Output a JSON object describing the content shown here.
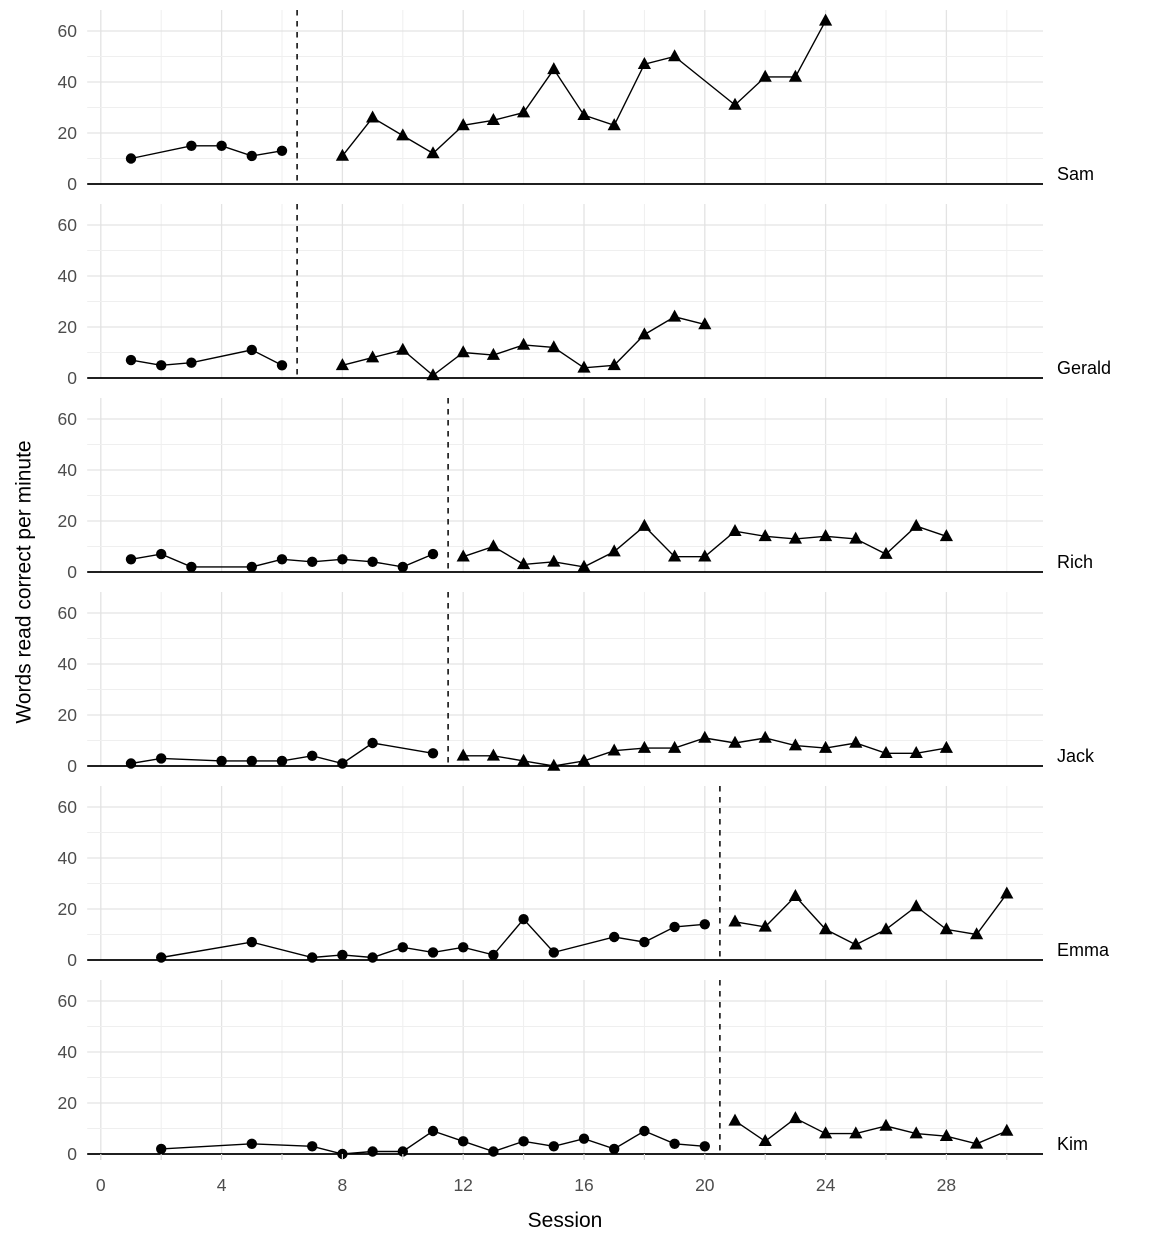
{
  "figure": {
    "x_axis_title": "Session",
    "y_axis_title": "Words read correct per minute",
    "x_ticks": [
      0,
      4,
      8,
      12,
      16,
      20,
      24,
      28
    ],
    "y_ticks": [
      0,
      20,
      40,
      60
    ],
    "colors": {
      "background": "#ffffff",
      "data": "#000000",
      "grid_major": "#e3e3e3",
      "grid_minor": "#efefef",
      "tick_label": "#4d4d4d",
      "axis_line": "#000000",
      "phase_line": "#111111"
    }
  },
  "chart_data": {
    "type": "line",
    "xlabel": "Session",
    "ylabel": "Words read correct per minute",
    "xlim": [
      -0.45,
      31.2
    ],
    "ylim_per_panel": [
      0,
      68
    ],
    "grid": true,
    "marker_legend": {
      "baseline": "circle",
      "intervention": "triangle"
    },
    "panels": [
      {
        "name": "Sam",
        "phase_change_x": 6.5,
        "baseline": {
          "sessions": [
            1,
            3,
            4,
            5,
            6
          ],
          "values": [
            10,
            15,
            15,
            11,
            13
          ]
        },
        "intervention": {
          "sessions": [
            8,
            9,
            10,
            11,
            12,
            13,
            14,
            15,
            16,
            17,
            18,
            19,
            21,
            22,
            23,
            24
          ],
          "values": [
            11,
            26,
            19,
            12,
            23,
            25,
            28,
            45,
            27,
            23,
            47,
            50,
            31,
            42,
            42,
            64
          ]
        }
      },
      {
        "name": "Gerald",
        "phase_change_x": 6.5,
        "baseline": {
          "sessions": [
            1,
            2,
            3,
            5,
            6
          ],
          "values": [
            7,
            5,
            6,
            11,
            5
          ]
        },
        "intervention": {
          "sessions": [
            8,
            9,
            10,
            11,
            12,
            13,
            14,
            15,
            16,
            17,
            18,
            19,
            20
          ],
          "values": [
            5,
            8,
            11,
            1,
            10,
            9,
            13,
            12,
            4,
            5,
            17,
            24,
            21
          ]
        }
      },
      {
        "name": "Rich",
        "phase_change_x": 11.5,
        "baseline": {
          "sessions": [
            1,
            2,
            3,
            5,
            6,
            7,
            8,
            9,
            10,
            11
          ],
          "values": [
            5,
            7,
            2,
            2,
            5,
            4,
            5,
            4,
            2,
            7
          ]
        },
        "intervention": {
          "sessions": [
            12,
            13,
            14,
            15,
            16,
            17,
            18,
            19,
            20,
            21,
            22,
            23,
            24,
            25,
            26,
            27,
            28
          ],
          "values": [
            6,
            10,
            3,
            4,
            2,
            8,
            18,
            6,
            6,
            16,
            14,
            13,
            14,
            13,
            7,
            18,
            14
          ]
        }
      },
      {
        "name": "Jack",
        "phase_change_x": 11.5,
        "baseline": {
          "sessions": [
            1,
            2,
            4,
            5,
            6,
            7,
            8,
            9,
            11
          ],
          "values": [
            1,
            3,
            2,
            2,
            2,
            4,
            1,
            9,
            5
          ]
        },
        "intervention": {
          "sessions": [
            12,
            13,
            14,
            15,
            16,
            17,
            18,
            19,
            20,
            21,
            22,
            23,
            24,
            25,
            26,
            27,
            28
          ],
          "values": [
            4,
            4,
            2,
            0,
            2,
            6,
            7,
            7,
            11,
            9,
            11,
            8,
            7,
            9,
            5,
            5,
            7
          ]
        }
      },
      {
        "name": "Emma",
        "phase_change_x": 20.5,
        "baseline": {
          "sessions": [
            2,
            5,
            7,
            8,
            9,
            10,
            11,
            12,
            13,
            14,
            15,
            17,
            18,
            19,
            20
          ],
          "values": [
            1,
            7,
            1,
            2,
            1,
            5,
            3,
            5,
            2,
            16,
            3,
            9,
            7,
            13,
            14
          ]
        },
        "intervention": {
          "sessions": [
            21,
            22,
            23,
            24,
            25,
            26,
            27,
            28,
            29,
            30
          ],
          "values": [
            15,
            13,
            25,
            12,
            6,
            12,
            21,
            12,
            10,
            26
          ]
        }
      },
      {
        "name": "Kim",
        "phase_change_x": 20.5,
        "baseline": {
          "sessions": [
            2,
            5,
            7,
            8,
            9,
            10,
            11,
            12,
            13,
            14,
            15,
            16,
            17,
            18,
            19,
            20
          ],
          "values": [
            2,
            4,
            3,
            0,
            1,
            1,
            9,
            5,
            1,
            5,
            3,
            6,
            2,
            9,
            4,
            3
          ]
        },
        "intervention": {
          "sessions": [
            21,
            22,
            23,
            24,
            25,
            26,
            27,
            28,
            29,
            30
          ],
          "values": [
            13,
            5,
            14,
            8,
            8,
            11,
            8,
            7,
            4,
            9
          ]
        }
      }
    ]
  }
}
